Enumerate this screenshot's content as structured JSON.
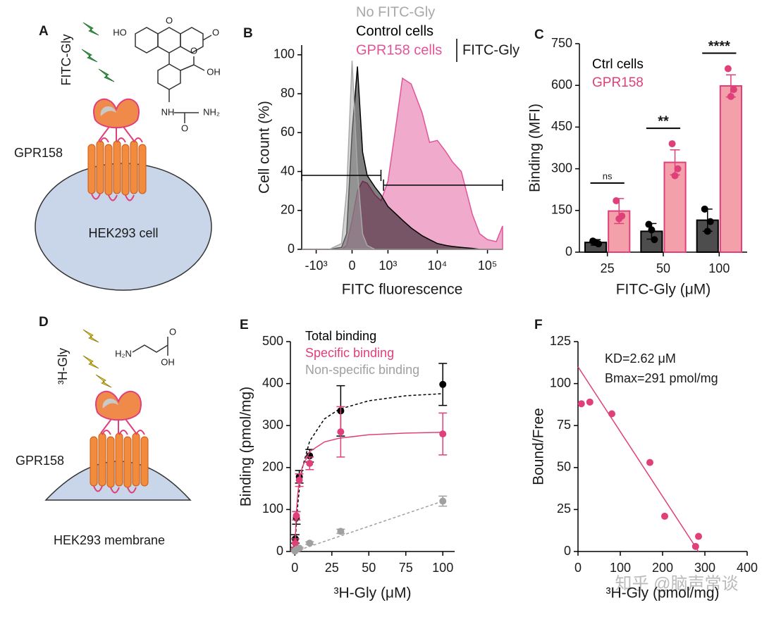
{
  "panels": {
    "A": {
      "label": "A",
      "ligand": "FITC-Gly",
      "receptor": "GPR158",
      "cell": "HEK293 cell",
      "structure": [
        "HO",
        "O",
        "O",
        "O",
        "OH",
        "NH",
        "O",
        "NH₂"
      ]
    },
    "D": {
      "label": "D",
      "ligand": "³H-Gly",
      "receptor": "GPR158",
      "membrane": "HEK293 membrane",
      "structure": [
        "H₂N",
        "O",
        "OH"
      ]
    }
  },
  "watermark": "知乎 @脑声常谈",
  "chart_data": [
    {
      "panel": "B",
      "type": "area",
      "x_label": "FITC fluorescence",
      "y_label": "Cell count (%)",
      "xscale": "biexponential",
      "x": [
        -2000,
        -1000,
        -500,
        -200,
        -100,
        0,
        100,
        200,
        300,
        500,
        700,
        1000,
        1500,
        2000,
        3000,
        5000,
        7000,
        10000,
        15000,
        20000,
        30000,
        50000,
        70000,
        100000,
        150000,
        200000
      ],
      "series": [
        {
          "name": "No FITC-Gly",
          "color": "#a8a8a8",
          "values": [
            0,
            0,
            0,
            3,
            30,
            97,
            40,
            8,
            2,
            0,
            0,
            0,
            0,
            0,
            0,
            0,
            0,
            0,
            0,
            0,
            0,
            0,
            0,
            0,
            0,
            0
          ]
        },
        {
          "name": "Control cells",
          "color": "#000000",
          "values": [
            0,
            0,
            0,
            1,
            8,
            60,
            94,
            50,
            38,
            32,
            28,
            22,
            18,
            15,
            11,
            7,
            5,
            3,
            2,
            1.5,
            1,
            0.5,
            0,
            0,
            0,
            0
          ]
        },
        {
          "name": "GPR158 cells",
          "color": "#e0559a",
          "values": [
            0,
            0,
            0,
            0,
            2,
            15,
            30,
            35,
            34,
            28,
            25,
            35,
            65,
            88,
            85,
            70,
            55,
            56,
            50,
            45,
            40,
            18,
            8,
            5,
            4,
            12
          ]
        }
      ],
      "bracket_label": "FITC-Gly",
      "gates": [
        {
          "x": [
            -2000,
            700
          ],
          "y": 38
        },
        {
          "x": [
            800,
            200000
          ],
          "y": 33
        }
      ],
      "xlim": [
        -2000,
        200000
      ],
      "ylim": [
        0,
        105
      ],
      "xticks": [
        {
          "value": -1000,
          "label": "-10³"
        },
        0,
        {
          "value": 1000,
          "label": "10³"
        },
        {
          "value": 10000,
          "label": "10⁴"
        },
        {
          "value": 100000,
          "label": "10⁵"
        }
      ],
      "yticks": [
        0,
        20,
        40,
        60,
        80,
        100
      ]
    },
    {
      "panel": "C",
      "type": "bar",
      "categories": [
        "25",
        "50",
        "100"
      ],
      "x_label": "FITC-Gly (μM)",
      "y_label": "Binding (MFI)",
      "series": [
        {
          "name": "Ctrl cells",
          "color": "#4d4d4d",
          "edge": "#000000",
          "values": [
            35,
            75,
            115
          ],
          "errors": [
            10,
            28,
            40
          ],
          "points": [
            [
              40,
              30,
              35
            ],
            [
              100,
              45,
              80
            ],
            [
              155,
              110,
              75
            ]
          ]
        },
        {
          "name": "GPR158",
          "color": "#f4a0aa",
          "edge": "#e0407a",
          "values": [
            148,
            323,
            598
          ],
          "errors": [
            45,
            45,
            40
          ],
          "points": [
            [
              185,
              130,
              120
            ],
            [
              390,
              300,
              275
            ],
            [
              660,
              585,
              560
            ]
          ]
        }
      ],
      "significance": [
        "ns",
        "**",
        "****"
      ],
      "ylim": [
        0,
        750
      ],
      "yticks": [
        0,
        150,
        300,
        450,
        600,
        750
      ]
    },
    {
      "panel": "E",
      "type": "scatter",
      "x_label": "³H-Gly (μM)",
      "y_label": "Binding (pmol/mg)",
      "x": [
        0.1,
        0.3,
        1,
        3,
        10,
        31,
        100
      ],
      "fit_x": [
        0,
        1,
        2,
        3,
        5,
        10,
        20,
        30,
        50,
        75,
        100
      ],
      "series": [
        {
          "name": "Total binding",
          "color": "#000000",
          "dashed": true,
          "values": [
            5,
            30,
            80,
            178,
            228,
            335,
            398
          ],
          "errors": [
            5,
            10,
            15,
            15,
            15,
            60,
            50
          ],
          "fit": [
            0,
            66,
            113,
            148,
            198,
            263,
            316,
            339,
            359,
            371,
            376
          ]
        },
        {
          "name": "Specific binding",
          "color": "#e0407a",
          "dashed": false,
          "values": [
            3,
            20,
            85,
            170,
            210,
            285,
            280
          ],
          "errors": [
            3,
            10,
            10,
            15,
            15,
            60,
            50
          ],
          "fit": [
            0,
            91,
            138,
            167,
            201,
            238,
            261,
            270,
            278,
            282,
            284
          ]
        },
        {
          "name": "Non-specific binding",
          "color": "#a0a0a0",
          "dashed": true,
          "values": [
            1,
            3,
            5,
            8,
            20,
            48,
            120
          ],
          "errors": [
            1,
            1,
            2,
            2,
            3,
            5,
            12
          ],
          "fit": [
            0,
            1.2,
            2.4,
            3.6,
            6,
            12,
            24,
            36,
            60,
            90,
            120
          ]
        }
      ],
      "xlim": [
        -3,
        108
      ],
      "ylim": [
        0,
        500
      ],
      "xticks": [
        0,
        25,
        50,
        75,
        100
      ],
      "yticks": [
        0,
        100,
        200,
        300,
        400,
        500
      ]
    },
    {
      "panel": "F",
      "type": "scatter",
      "x_label": "³H-Gly (pmol/mg)",
      "y_label": "Bound/Free",
      "x": [
        8,
        28,
        80,
        170,
        205,
        278,
        285
      ],
      "values": [
        88,
        89,
        82,
        53,
        21,
        3,
        9
      ],
      "color": "#e0407a",
      "fit_line": {
        "x": [
          0,
          285
        ],
        "y": [
          110,
          0
        ]
      },
      "annotations": [
        "KD=2.62 μM",
        "Bmax=291 pmol/mg"
      ],
      "xlim": [
        0,
        400
      ],
      "ylim": [
        0,
        125
      ],
      "xticks": [
        0,
        100,
        200,
        300,
        400
      ],
      "yticks": [
        0,
        25,
        50,
        75,
        100,
        125
      ]
    }
  ]
}
